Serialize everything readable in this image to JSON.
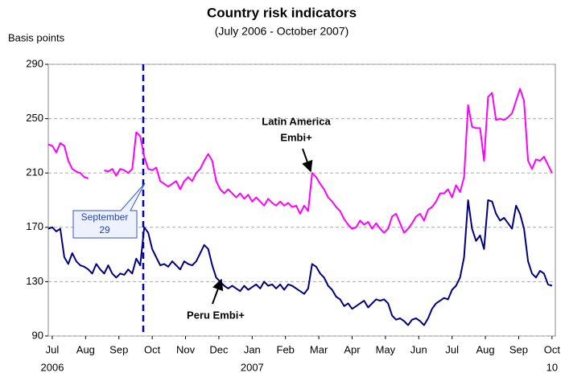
{
  "chart_data": {
    "type": "line",
    "title": "Country risk indicators",
    "subtitle": "(July 2006 - October 2007)",
    "y_label": "Basis points",
    "x": [
      -0.12,
      0,
      0.12,
      0.24,
      0.36,
      0.48,
      0.6,
      0.72,
      0.84,
      0.96,
      1.08,
      1.2,
      1.32,
      1.44,
      1.56,
      1.68,
      1.8,
      1.92,
      2.04,
      2.16,
      2.28,
      2.4,
      2.52,
      2.64,
      2.76,
      2.88,
      3,
      3.12,
      3.24,
      3.36,
      3.48,
      3.6,
      3.72,
      3.84,
      3.96,
      4.08,
      4.2,
      4.32,
      4.44,
      4.56,
      4.68,
      4.8,
      4.92,
      5.04,
      5.16,
      5.28,
      5.4,
      5.52,
      5.64,
      5.76,
      5.88,
      6,
      6.12,
      6.24,
      6.36,
      6.48,
      6.6,
      6.72,
      6.84,
      6.96,
      7.08,
      7.2,
      7.32,
      7.44,
      7.56,
      7.68,
      7.8,
      7.92,
      8.04,
      8.16,
      8.28,
      8.4,
      8.52,
      8.64,
      8.76,
      8.88,
      9,
      9.12,
      9.24,
      9.36,
      9.48,
      9.6,
      9.72,
      9.84,
      9.96,
      10.08,
      10.2,
      10.32,
      10.44,
      10.56,
      10.68,
      10.8,
      10.92,
      11.04,
      11.16,
      11.28,
      11.4,
      11.52,
      11.64,
      11.76,
      11.88,
      12,
      12.12,
      12.24,
      12.36,
      12.48,
      12.6,
      12.72,
      12.84,
      12.96,
      13.08,
      13.2,
      13.32,
      13.44,
      13.56,
      13.68,
      13.8,
      13.92,
      14.04,
      14.16,
      14.28,
      14.4,
      14.52,
      14.64,
      14.76,
      14.88,
      15
    ],
    "series": [
      {
        "name": "Latin America Embi+",
        "color": "#ff00ff",
        "values": [
          231,
          230,
          225,
          232,
          230,
          219,
          213,
          211,
          210,
          207,
          206,
          null,
          null,
          null,
          212,
          211,
          213,
          208,
          213,
          212,
          210,
          213,
          240,
          237,
          222,
          213,
          212,
          214,
          204,
          202,
          200,
          202,
          204,
          198,
          204,
          207,
          204,
          210,
          213,
          219,
          224,
          219,
          204,
          198,
          195,
          198,
          195,
          192,
          195,
          191,
          194,
          189,
          192,
          189,
          186,
          191,
          188,
          186,
          189,
          186,
          188,
          185,
          186,
          180,
          186,
          182,
          210,
          207,
          202,
          198,
          192,
          189,
          185,
          182,
          176,
          172,
          169,
          170,
          175,
          172,
          174,
          169,
          173,
          169,
          166,
          169,
          178,
          180,
          173,
          166,
          169,
          173,
          178,
          180,
          175,
          183,
          185,
          189,
          195,
          195,
          198,
          192,
          201,
          196,
          207,
          260,
          244,
          243,
          243,
          219,
          266,
          269,
          249,
          250,
          249,
          251,
          254,
          263,
          272,
          263,
          219,
          213,
          220,
          219,
          222,
          216,
          210
        ]
      },
      {
        "name": "Peru Embi+",
        "color": "#000080",
        "values": [
          169,
          170,
          167,
          169,
          148,
          143,
          151,
          145,
          142,
          141,
          139,
          136,
          143,
          139,
          136,
          142,
          136,
          133,
          136,
          135,
          139,
          136,
          147,
          142,
          170,
          166,
          154,
          148,
          142,
          143,
          141,
          145,
          142,
          139,
          145,
          143,
          142,
          145,
          151,
          157,
          154,
          142,
          133,
          130,
          127,
          125,
          127,
          125,
          123,
          127,
          124,
          126,
          128,
          125,
          130,
          127,
          128,
          125,
          128,
          124,
          128,
          127,
          125,
          123,
          121,
          125,
          143,
          141,
          136,
          133,
          127,
          124,
          119,
          117,
          112,
          114,
          110,
          112,
          114,
          116,
          111,
          114,
          117,
          116,
          117,
          114,
          105,
          102,
          103,
          101,
          98,
          102,
          103,
          101,
          98,
          103,
          110,
          114,
          116,
          118,
          117,
          124,
          127,
          133,
          148,
          190,
          169,
          160,
          164,
          154,
          190,
          189,
          180,
          175,
          177,
          173,
          169,
          186,
          180,
          169,
          145,
          136,
          133,
          138,
          136,
          128,
          127
        ]
      }
    ],
    "xlim": [
      -0.12,
      15.1
    ],
    "xticks": [
      {
        "value": 0,
        "label": "Jul"
      },
      {
        "value": 1,
        "label": "Aug"
      },
      {
        "value": 2,
        "label": "Sep"
      },
      {
        "value": 3,
        "label": "Oct"
      },
      {
        "value": 4,
        "label": "Nov"
      },
      {
        "value": 5,
        "label": "Dec"
      },
      {
        "value": 6,
        "label": "Jan"
      },
      {
        "value": 7,
        "label": "Feb"
      },
      {
        "value": 8,
        "label": "Mar"
      },
      {
        "value": 9,
        "label": "Apr"
      },
      {
        "value": 10,
        "label": "May"
      },
      {
        "value": 11,
        "label": "Jun"
      },
      {
        "value": 12,
        "label": "Jul"
      },
      {
        "value": 13,
        "label": "Aug"
      },
      {
        "value": 14,
        "label": "Sep"
      },
      {
        "value": 15,
        "label": "Oct"
      }
    ],
    "x_sublabels": [
      {
        "value": 0,
        "label": "2006"
      },
      {
        "value": 6,
        "label": "2007"
      },
      {
        "value": 15,
        "label": "10"
      }
    ],
    "ylim": [
      90,
      290
    ],
    "yticks": [
      90,
      130,
      170,
      210,
      250,
      290
    ],
    "grid": true,
    "marker_line": {
      "x": 2.73,
      "color": "#0000cc",
      "label": [
        "September",
        "29"
      ]
    },
    "annotations": [
      [
        "Latin America",
        "Embi+"
      ],
      [
        "Peru Embi+"
      ]
    ]
  }
}
